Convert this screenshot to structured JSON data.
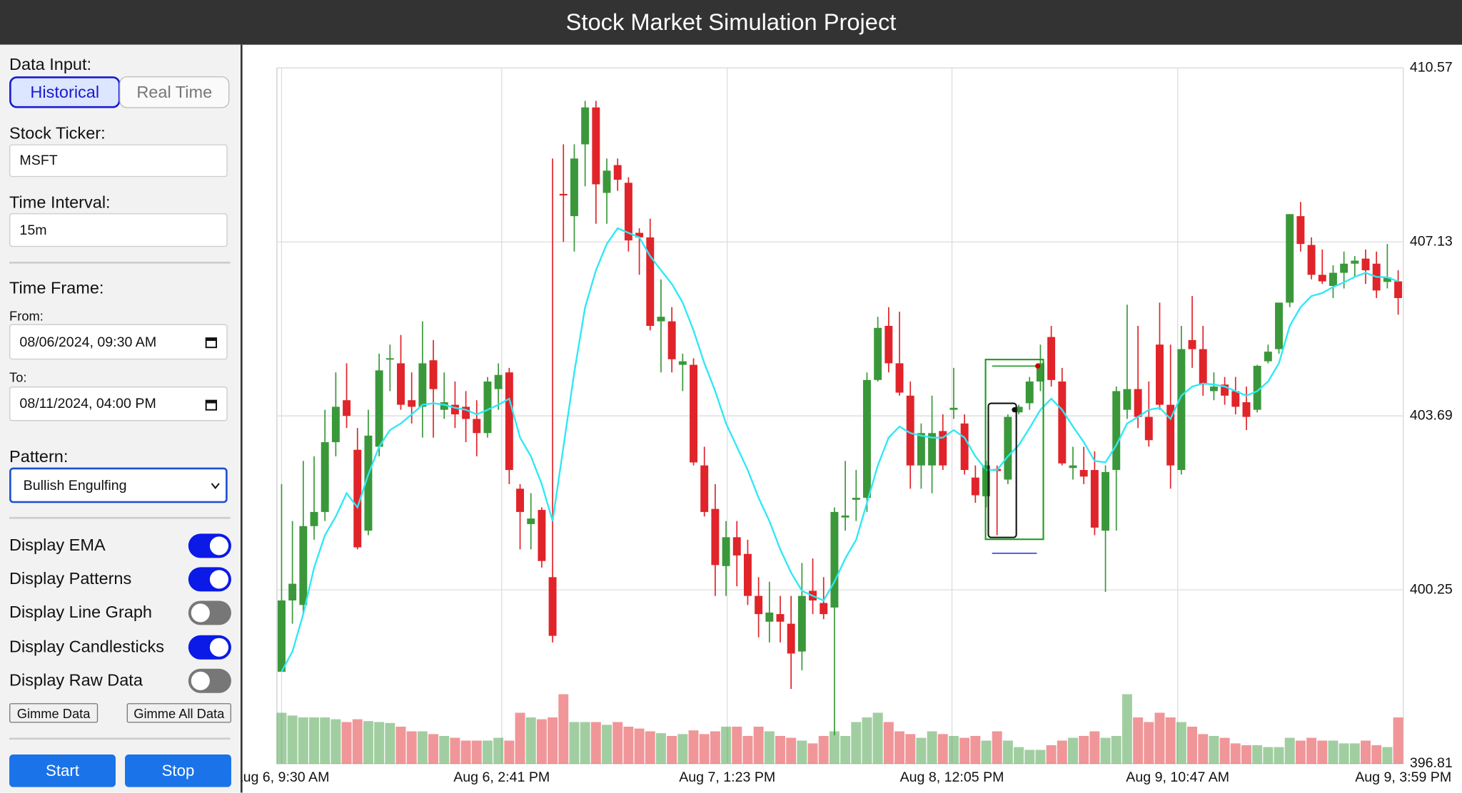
{
  "header": {
    "title": "Stock Market Simulation Project"
  },
  "sidebar": {
    "data_input": {
      "label": "Data Input:",
      "options": [
        "Historical",
        "Real Time"
      ],
      "selected": 0
    },
    "ticker": {
      "label": "Stock Ticker:",
      "value": "MSFT"
    },
    "interval": {
      "label": "Time Interval:",
      "value": "15m"
    },
    "time_frame": {
      "label": "Time Frame:",
      "from_label": "From:",
      "from": "08/06/2024, 09:30 AM",
      "to_label": "To:",
      "to": "08/11/2024, 04:00 PM"
    },
    "pattern": {
      "label": "Pattern:",
      "value": "Bullish Engulfing"
    },
    "toggles": [
      {
        "label": "Display EMA",
        "on": true
      },
      {
        "label": "Display Patterns",
        "on": true
      },
      {
        "label": "Display Line Graph",
        "on": false
      },
      {
        "label": "Display Candlesticks",
        "on": true
      },
      {
        "label": "Display Raw Data",
        "on": false
      }
    ],
    "buttons": [
      "Gimme Data",
      "Gimme All Data"
    ],
    "actions": [
      "Start",
      "Stop"
    ]
  },
  "chart_data": {
    "type": "candlestick",
    "open": [
      398.63,
      400.04,
      399.95,
      401.51,
      401.79,
      403.17,
      404.0,
      403.02,
      401.42,
      403.08,
      404.81,
      404.73,
      404.0,
      403.87,
      404.79,
      403.81,
      403.91,
      403.87,
      403.63,
      403.35,
      404.22,
      404.55,
      402.25,
      401.55,
      401.83,
      400.5,
      408.08,
      407.64,
      409.06,
      409.79,
      408.1,
      408.65,
      408.3,
      407.31,
      407.22,
      405.56,
      405.56,
      404.7,
      404.7,
      402.71,
      401.85,
      400.72,
      401.29,
      400.96,
      400.13,
      399.62,
      399.77,
      399.58,
      399.03,
      400.23,
      399.99,
      399.9,
      401.68,
      402.03,
      402.07,
      404.4,
      405.47,
      404.73,
      404.09,
      402.71,
      402.71,
      403.39,
      403.81,
      403.54,
      402.47,
      402.1,
      402.64,
      402.43,
      403.76,
      403.94,
      404.37,
      405.25,
      404.37,
      402.66,
      402.62,
      402.62,
      401.42,
      402.62,
      403.81,
      404.22,
      403.67,
      405.1,
      403.91,
      402.62,
      405.19,
      405.01,
      404.18,
      404.31,
      404.18,
      403.96,
      403.81,
      404.77,
      405.01,
      405.93,
      407.64,
      407.07,
      406.48,
      406.26,
      406.52,
      406.7,
      406.8,
      406.7,
      406.34,
      406.35
    ],
    "high": [
      402.34,
      401.61,
      402.8,
      402.89,
      403.81,
      404.55,
      404.73,
      403.45,
      403.81,
      404.92,
      405.1,
      405.29,
      404.55,
      405.56,
      405.19,
      404.55,
      404.37,
      404.18,
      404.0,
      404.46,
      404.73,
      404.64,
      402.34,
      402.16,
      401.88,
      408.78,
      409.06,
      409.06,
      409.92,
      409.92,
      408.78,
      408.78,
      408.41,
      407.4,
      407.59,
      406.39,
      405.84,
      404.92,
      404.83,
      403.08,
      402.34,
      401.61,
      401.61,
      401.24,
      400.5,
      400.41,
      400.13,
      400.13,
      400.78,
      400.87,
      400.5,
      401.88,
      402.8,
      402.62,
      404.55,
      405.65,
      405.84,
      405.75,
      404.37,
      403.54,
      404.09,
      403.72,
      404.64,
      403.72,
      402.71,
      402.8,
      402.71,
      403.72,
      403.91,
      404.46,
      405.1,
      405.47,
      404.64,
      403.08,
      403.08,
      402.99,
      402.71,
      404.27,
      405.89,
      405.47,
      404.37,
      405.93,
      405.1,
      405.47,
      406.06,
      405.47,
      404.55,
      404.46,
      404.46,
      404.27,
      404.7,
      405.1,
      405.93,
      407.68,
      407.92,
      407.22,
      406.98,
      406.67,
      406.94,
      406.85,
      406.98,
      406.94,
      407.09,
      406.57
    ],
    "low": [
      398.63,
      399.58,
      399.77,
      401.24,
      401.61,
      402.89,
      403.45,
      401.05,
      401.33,
      402.89,
      404.18,
      403.81,
      403.54,
      403.26,
      403.26,
      403.63,
      403.45,
      403.17,
      402.89,
      403.26,
      403.81,
      402.34,
      401.05,
      401.05,
      400.69,
      399.21,
      407.13,
      406.94,
      408.23,
      407.49,
      407.49,
      408.14,
      406.94,
      406.48,
      405.38,
      404.55,
      404.55,
      404.18,
      402.71,
      401.7,
      400.13,
      400.13,
      400.32,
      399.95,
      399.31,
      399.21,
      399.21,
      398.29,
      398.66,
      399.77,
      399.67,
      397.37,
      401.42,
      401.61,
      401.79,
      404.37,
      404.55,
      404.09,
      402.25,
      402.25,
      402.16,
      402.62,
      403.63,
      402.53,
      401.97,
      401.88,
      401.33,
      402.34,
      403.72,
      403.81,
      404.18,
      404.27,
      402.71,
      402.43,
      402.34,
      401.33,
      400.21,
      401.42,
      403.63,
      403.45,
      403.08,
      403.81,
      402.25,
      402.53,
      404.64,
      404.09,
      404.0,
      403.91,
      403.72,
      403.41,
      403.76,
      404.73,
      404.92,
      405.84,
      406.94,
      406.39,
      406.3,
      406.02,
      406.21,
      406.43,
      406.3,
      406.02,
      406.21,
      405.69
    ],
    "close": [
      400.04,
      400.37,
      401.51,
      401.79,
      403.17,
      403.87,
      403.69,
      401.09,
      403.3,
      404.59,
      404.83,
      403.91,
      403.87,
      404.73,
      404.22,
      403.96,
      403.72,
      403.63,
      403.35,
      404.37,
      404.5,
      402.62,
      401.79,
      401.66,
      400.82,
      399.34,
      408.05,
      408.78,
      409.79,
      408.27,
      408.54,
      408.36,
      407.16,
      407.22,
      405.47,
      405.65,
      404.81,
      404.77,
      402.77,
      401.79,
      400.74,
      401.29,
      400.93,
      400.13,
      399.77,
      399.8,
      399.62,
      398.99,
      400.13,
      400.04,
      399.77,
      401.79,
      401.72,
      402.07,
      404.4,
      405.43,
      404.73,
      404.15,
      402.71,
      403.35,
      403.35,
      402.71,
      403.85,
      402.62,
      402.12,
      402.71,
      402.6,
      403.67,
      403.87,
      404.37,
      404.73,
      404.4,
      402.75,
      402.71,
      402.49,
      401.48,
      402.58,
      404.18,
      404.22,
      403.67,
      403.21,
      403.91,
      402.71,
      405.01,
      405.01,
      404.31,
      404.27,
      404.09,
      403.87,
      403.67,
      404.68,
      404.96,
      405.93,
      407.68,
      407.09,
      406.48,
      406.35,
      406.52,
      406.7,
      406.76,
      406.57,
      406.17,
      406.43,
      406.02
    ],
    "volume": [
      55,
      52,
      50,
      50,
      50,
      48,
      45,
      48,
      46,
      45,
      44,
      40,
      35,
      35,
      32,
      30,
      28,
      25,
      25,
      25,
      28,
      25,
      55,
      50,
      48,
      50,
      75,
      45,
      45,
      45,
      42,
      45,
      40,
      38,
      35,
      33,
      30,
      32,
      36,
      32,
      35,
      40,
      40,
      30,
      40,
      35,
      30,
      28,
      25,
      22,
      30,
      35,
      30,
      45,
      50,
      55,
      45,
      35,
      32,
      28,
      35,
      32,
      30,
      28,
      30,
      25,
      35,
      25,
      18,
      15,
      15,
      20,
      25,
      28,
      30,
      35,
      28,
      30,
      75,
      50,
      45,
      55,
      50,
      45,
      40,
      32,
      30,
      28,
      22,
      20,
      20,
      18,
      18,
      28,
      25,
      28,
      25,
      25,
      22,
      22,
      25,
      20,
      18,
      50
    ],
    "ema": [
      398.63,
      399.03,
      399.77,
      400.69,
      401.33,
      401.7,
      402.16,
      401.88,
      402.53,
      403.08,
      403.41,
      403.54,
      403.72,
      403.91,
      403.94,
      403.91,
      403.85,
      403.81,
      403.72,
      403.81,
      403.91,
      404.03,
      403.26,
      402.89,
      402.34,
      401.61,
      403.08,
      404.55,
      405.84,
      406.57,
      407.09,
      407.4,
      407.31,
      407.22,
      406.85,
      406.57,
      406.3,
      405.93,
      405.38,
      404.73,
      404.18,
      403.54,
      403.08,
      402.62,
      402.07,
      401.61,
      401.05,
      400.59,
      400.23,
      400.13,
      400.04,
      400.41,
      400.87,
      401.24,
      401.97,
      402.71,
      403.26,
      403.48,
      403.35,
      403.3,
      403.26,
      403.26,
      403.41,
      403.26,
      402.89,
      402.62,
      402.62,
      402.89,
      403.11,
      403.45,
      403.81,
      404.03,
      403.81,
      403.48,
      403.17,
      402.8,
      402.77,
      403.11,
      403.54,
      403.67,
      403.81,
      403.85,
      403.63,
      404.09,
      404.27,
      404.33,
      404.31,
      404.27,
      404.18,
      404.09,
      404.18,
      404.37,
      404.73,
      405.47,
      405.84,
      406.06,
      406.12,
      406.24,
      406.33,
      406.44,
      406.52,
      406.44,
      406.43,
      406.35
    ],
    "up_color": "#3a983a",
    "down_color": "#e0242a",
    "ema_color": "#2ee8f4",
    "ylim": [
      396.81,
      410.57
    ],
    "yticks": [
      396.81,
      400.25,
      403.69,
      407.13,
      410.57
    ],
    "xlim": [
      -0.43,
      103.47
    ],
    "xticks": [
      {
        "value": 0,
        "label": "Aug 6, 9:30 AM"
      },
      {
        "value": 20.3,
        "label": "Aug 6, 2:41 PM"
      },
      {
        "value": 41.11,
        "label": "Aug 7, 1:23 PM"
      },
      {
        "value": 61.84,
        "label": "Aug 8, 12:05 PM"
      },
      {
        "value": 82.66,
        "label": "Aug 9, 10:47 AM"
      },
      {
        "value": 103.47,
        "label": "Aug 9, 3:59 PM"
      }
    ],
    "grid": true
  }
}
